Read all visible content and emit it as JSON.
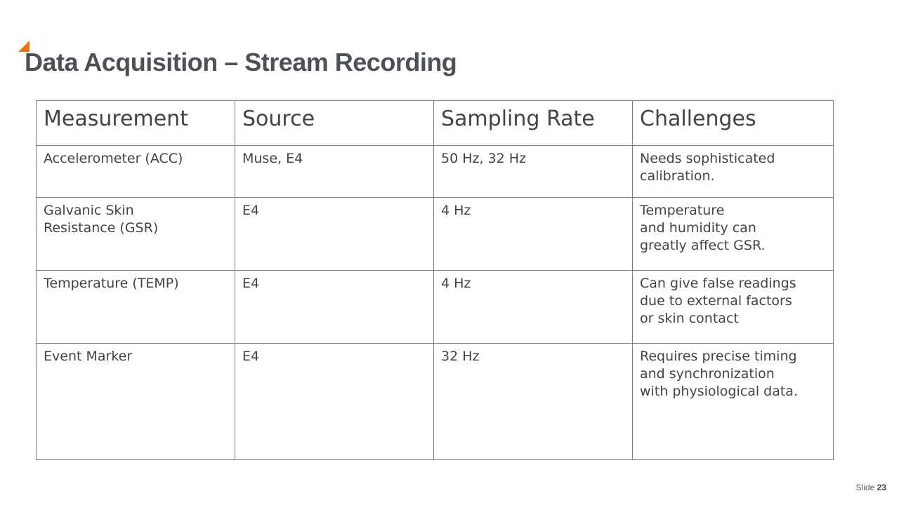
{
  "slide": {
    "title": "Data Acquisition – Stream Recording",
    "accent_color": "#E8700E",
    "footer_label": "Slide",
    "footer_number": "23"
  },
  "table": {
    "headers": [
      "Measurement",
      "Source",
      "Sampling Rate",
      "Challenges"
    ],
    "rows": [
      [
        "Accelerometer (ACC)",
        "Muse, E4",
        "50 Hz, 32 Hz",
        "Needs sophisticated\ncalibration."
      ],
      [
        "Galvanic Skin\nResistance (GSR)",
        "E4",
        "4 Hz",
        "Temperature\nand humidity can\ngreatly affect GSR."
      ],
      [
        "Temperature (TEMP)",
        "E4",
        "4 Hz",
        "Can give false readings\ndue to external factors\nor skin contact"
      ],
      [
        "Event Marker",
        "E4",
        "32 Hz",
        "Requires precise timing\nand synchronization\nwith physiological data."
      ]
    ]
  }
}
